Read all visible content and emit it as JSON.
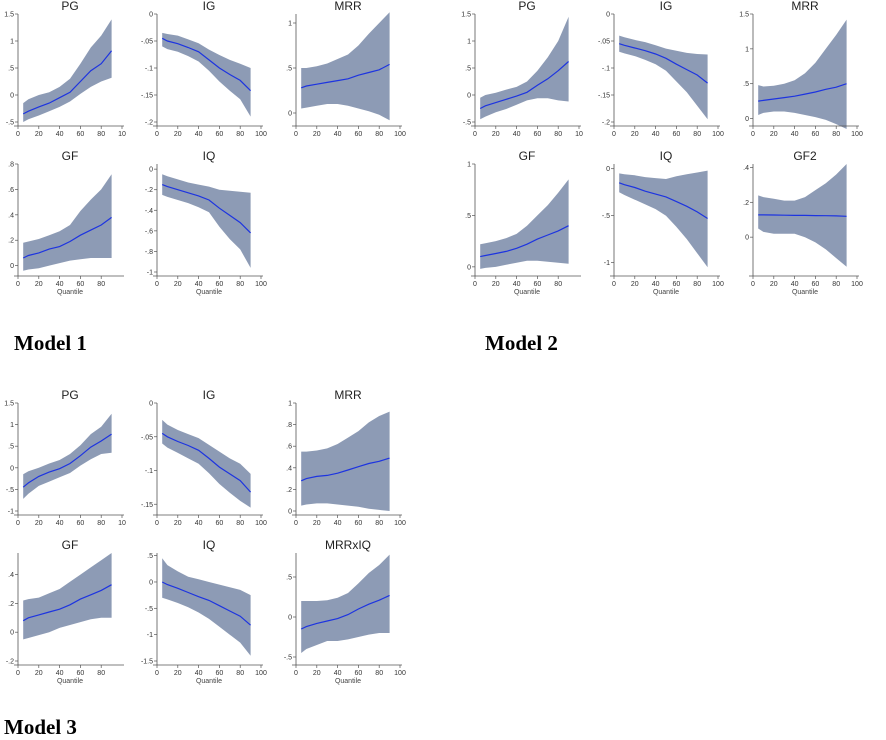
{
  "models": [
    {
      "label": "Model 1"
    },
    {
      "label": "Model 2"
    },
    {
      "label": "Model 3"
    }
  ],
  "colors": {
    "band": "#8d9bb5",
    "line": "#1d34e0",
    "axis": "#555555"
  },
  "chart_data": [
    {
      "type": "area",
      "model": "Model 1",
      "title": "PG",
      "xlabel": "",
      "ylim": [
        -0.5,
        1.5
      ],
      "yticks": [
        "-.5",
        "0",
        ".5",
        "1",
        "1.5"
      ],
      "xticks": [
        "0",
        "20",
        "40",
        "60",
        "80",
        "10"
      ],
      "x": [
        5,
        10,
        20,
        30,
        40,
        50,
        60,
        70,
        80,
        90
      ],
      "y": [
        -0.35,
        -0.3,
        -0.22,
        -0.15,
        -0.05,
        0.05,
        0.25,
        0.45,
        0.58,
        0.82
      ],
      "lower": [
        -0.5,
        -0.45,
        -0.38,
        -0.3,
        -0.22,
        -0.12,
        0.02,
        0.15,
        0.25,
        0.32
      ],
      "upper": [
        -0.15,
        -0.08,
        0.0,
        0.05,
        0.15,
        0.3,
        0.58,
        0.88,
        1.1,
        1.4
      ]
    },
    {
      "type": "area",
      "model": "Model 1",
      "title": "IG",
      "xlabel": "",
      "ylim": [
        -0.2,
        0
      ],
      "yticks": [
        "-.2",
        "-.15",
        "-.1",
        "-.05",
        "0"
      ],
      "xticks": [
        "0",
        "20",
        "40",
        "60",
        "80",
        "100"
      ],
      "x": [
        5,
        10,
        20,
        30,
        40,
        50,
        60,
        70,
        80,
        90
      ],
      "y": [
        -0.045,
        -0.05,
        -0.055,
        -0.062,
        -0.07,
        -0.085,
        -0.1,
        -0.112,
        -0.123,
        -0.142
      ],
      "lower": [
        -0.06,
        -0.065,
        -0.07,
        -0.078,
        -0.088,
        -0.105,
        -0.125,
        -0.142,
        -0.158,
        -0.19
      ],
      "upper": [
        -0.035,
        -0.037,
        -0.04,
        -0.047,
        -0.054,
        -0.066,
        -0.076,
        -0.085,
        -0.092,
        -0.1
      ]
    },
    {
      "type": "area",
      "model": "Model 1",
      "title": "MRR",
      "xlabel": "",
      "ylim": [
        -0.1,
        1.1
      ],
      "yticks": [
        "0",
        ".5",
        "1"
      ],
      "xticks": [
        "0",
        "20",
        "40",
        "60",
        "80",
        "100"
      ],
      "x": [
        5,
        10,
        20,
        30,
        40,
        50,
        60,
        70,
        80,
        90
      ],
      "y": [
        0.28,
        0.3,
        0.32,
        0.34,
        0.36,
        0.38,
        0.42,
        0.45,
        0.48,
        0.54
      ],
      "lower": [
        0.05,
        0.06,
        0.08,
        0.1,
        0.1,
        0.08,
        0.05,
        0.02,
        -0.02,
        -0.08
      ],
      "upper": [
        0.5,
        0.5,
        0.52,
        0.55,
        0.6,
        0.65,
        0.75,
        0.88,
        1.0,
        1.12
      ]
    },
    {
      "type": "area",
      "model": "Model 1",
      "title": "GF",
      "xlabel": "Quantile",
      "ylim": [
        -0.05,
        0.8
      ],
      "yticks": [
        "0",
        ".2",
        ".4",
        ".6",
        ".8"
      ],
      "xticks": [
        "0",
        "20",
        "40",
        "60",
        "80"
      ],
      "x": [
        5,
        10,
        20,
        30,
        40,
        50,
        60,
        70,
        80,
        90
      ],
      "y": [
        0.06,
        0.08,
        0.1,
        0.13,
        0.15,
        0.19,
        0.24,
        0.28,
        0.32,
        0.38
      ],
      "lower": [
        -0.04,
        -0.03,
        -0.02,
        0.0,
        0.02,
        0.04,
        0.05,
        0.06,
        0.06,
        0.06
      ],
      "upper": [
        0.18,
        0.19,
        0.21,
        0.24,
        0.27,
        0.32,
        0.43,
        0.52,
        0.6,
        0.72
      ]
    },
    {
      "type": "area",
      "model": "Model 1",
      "title": "IQ",
      "xlabel": "Quantile",
      "ylim": [
        -1,
        0.05
      ],
      "yticks": [
        "-1",
        "-.8",
        "-.6",
        "-.4",
        "-.2",
        "0"
      ],
      "xticks": [
        "0",
        "20",
        "40",
        "60",
        "80",
        "100"
      ],
      "x": [
        5,
        10,
        20,
        30,
        40,
        50,
        60,
        70,
        80,
        90
      ],
      "y": [
        -0.15,
        -0.17,
        -0.2,
        -0.23,
        -0.26,
        -0.3,
        -0.38,
        -0.45,
        -0.52,
        -0.62
      ],
      "lower": [
        -0.25,
        -0.27,
        -0.3,
        -0.33,
        -0.37,
        -0.42,
        -0.56,
        -0.68,
        -0.78,
        -0.96
      ],
      "upper": [
        -0.05,
        -0.07,
        -0.1,
        -0.13,
        -0.15,
        -0.17,
        -0.2,
        -0.21,
        -0.22,
        -0.23
      ]
    },
    {
      "type": "area",
      "model": "Model 2",
      "title": "PG",
      "xlabel": "",
      "ylim": [
        -0.5,
        1.5
      ],
      "yticks": [
        "-.5",
        "0",
        ".5",
        "1",
        "1.5"
      ],
      "xticks": [
        "0",
        "20",
        "40",
        "60",
        "80",
        "10"
      ],
      "x": [
        5,
        10,
        20,
        30,
        40,
        50,
        60,
        70,
        80,
        90
      ],
      "y": [
        -0.25,
        -0.2,
        -0.14,
        -0.08,
        -0.02,
        0.05,
        0.18,
        0.3,
        0.45,
        0.62
      ],
      "lower": [
        -0.45,
        -0.4,
        -0.32,
        -0.26,
        -0.18,
        -0.1,
        -0.06,
        -0.06,
        -0.1,
        -0.12
      ],
      "upper": [
        -0.05,
        0.0,
        0.04,
        0.1,
        0.15,
        0.25,
        0.45,
        0.7,
        1.0,
        1.45
      ]
    },
    {
      "type": "area",
      "model": "Model 2",
      "title": "IG",
      "xlabel": "",
      "ylim": [
        -0.2,
        0
      ],
      "yticks": [
        "-.2",
        "-.15",
        "-.1",
        "-.05",
        "0"
      ],
      "xticks": [
        "0",
        "20",
        "40",
        "60",
        "80",
        "100"
      ],
      "x": [
        5,
        10,
        20,
        30,
        40,
        50,
        60,
        70,
        80,
        90
      ],
      "y": [
        -0.055,
        -0.058,
        -0.063,
        -0.068,
        -0.074,
        -0.082,
        -0.093,
        -0.103,
        -0.113,
        -0.128
      ],
      "lower": [
        -0.07,
        -0.073,
        -0.078,
        -0.085,
        -0.093,
        -0.105,
        -0.125,
        -0.145,
        -0.17,
        -0.195
      ],
      "upper": [
        -0.04,
        -0.043,
        -0.048,
        -0.052,
        -0.058,
        -0.064,
        -0.068,
        -0.072,
        -0.074,
        -0.075
      ]
    },
    {
      "type": "area",
      "model": "Model 2",
      "title": "MRR",
      "xlabel": "",
      "ylim": [
        -0.05,
        1.5
      ],
      "yticks": [
        "0",
        ".5",
        "1",
        "1.5"
      ],
      "xticks": [
        "0",
        "20",
        "40",
        "60",
        "80",
        "100"
      ],
      "x": [
        5,
        10,
        20,
        30,
        40,
        50,
        60,
        70,
        80,
        90
      ],
      "y": [
        0.25,
        0.26,
        0.28,
        0.3,
        0.32,
        0.35,
        0.38,
        0.42,
        0.45,
        0.5
      ],
      "lower": [
        0.05,
        0.08,
        0.1,
        0.1,
        0.08,
        0.05,
        0.02,
        -0.02,
        -0.08,
        -0.15
      ],
      "upper": [
        0.48,
        0.46,
        0.47,
        0.5,
        0.55,
        0.65,
        0.8,
        1.0,
        1.2,
        1.42
      ]
    },
    {
      "type": "area",
      "model": "Model 2",
      "title": "GF",
      "xlabel": "Quantile",
      "ylim": [
        -0.05,
        1
      ],
      "yticks": [
        "0",
        ".5",
        "1"
      ],
      "xticks": [
        "0",
        "20",
        "40",
        "60",
        "80"
      ],
      "x": [
        5,
        10,
        20,
        30,
        40,
        50,
        60,
        70,
        80,
        90
      ],
      "y": [
        0.1,
        0.11,
        0.13,
        0.15,
        0.18,
        0.22,
        0.27,
        0.31,
        0.35,
        0.4
      ],
      "lower": [
        -0.02,
        -0.01,
        0.0,
        0.02,
        0.04,
        0.06,
        0.06,
        0.05,
        0.04,
        0.03
      ],
      "upper": [
        0.22,
        0.23,
        0.25,
        0.28,
        0.32,
        0.4,
        0.5,
        0.6,
        0.72,
        0.85
      ]
    },
    {
      "type": "area",
      "model": "Model 2",
      "title": "IQ",
      "xlabel": "Quantile",
      "ylim": [
        -1.1,
        0.05
      ],
      "yticks": [
        "-1",
        "-.5",
        "0"
      ],
      "xticks": [
        "0",
        "20",
        "40",
        "60",
        "80",
        "100"
      ],
      "x": [
        5,
        10,
        20,
        30,
        40,
        50,
        60,
        70,
        80,
        90
      ],
      "y": [
        -0.15,
        -0.17,
        -0.2,
        -0.24,
        -0.27,
        -0.3,
        -0.35,
        -0.4,
        -0.46,
        -0.53
      ],
      "lower": [
        -0.25,
        -0.28,
        -0.33,
        -0.38,
        -0.43,
        -0.5,
        -0.62,
        -0.75,
        -0.9,
        -1.05
      ],
      "upper": [
        -0.05,
        -0.06,
        -0.07,
        -0.09,
        -0.1,
        -0.11,
        -0.08,
        -0.06,
        -0.04,
        -0.02
      ]
    },
    {
      "type": "area",
      "model": "Model 2",
      "title": "GF2",
      "xlabel": "Quantile",
      "ylim": [
        -0.2,
        0.42
      ],
      "yticks": [
        "0",
        ".2",
        ".4"
      ],
      "xticks": [
        "0",
        "20",
        "40",
        "60",
        "80",
        "100"
      ],
      "x": [
        5,
        10,
        20,
        30,
        40,
        50,
        60,
        70,
        80,
        90
      ],
      "y": [
        0.128,
        0.128,
        0.127,
        0.126,
        0.125,
        0.125,
        0.124,
        0.123,
        0.122,
        0.12
      ],
      "lower": [
        0.05,
        0.03,
        0.02,
        0.02,
        0.02,
        0.0,
        -0.03,
        -0.07,
        -0.12,
        -0.17
      ],
      "upper": [
        0.24,
        0.23,
        0.22,
        0.21,
        0.21,
        0.23,
        0.27,
        0.31,
        0.36,
        0.42
      ]
    },
    {
      "type": "area",
      "model": "Model 3",
      "title": "PG",
      "xlabel": "",
      "ylim": [
        -1,
        1.5
      ],
      "yticks": [
        "-1",
        "-.5",
        "0",
        ".5",
        "1",
        "1.5"
      ],
      "xticks": [
        "0",
        "20",
        "40",
        "60",
        "80",
        "10"
      ],
      "x": [
        5,
        10,
        20,
        30,
        40,
        50,
        60,
        70,
        80,
        90
      ],
      "y": [
        -0.45,
        -0.35,
        -0.2,
        -0.1,
        -0.02,
        0.1,
        0.28,
        0.48,
        0.62,
        0.78
      ],
      "lower": [
        -0.72,
        -0.6,
        -0.42,
        -0.32,
        -0.22,
        -0.12,
        0.05,
        0.2,
        0.32,
        0.35
      ],
      "upper": [
        -0.15,
        -0.08,
        0.0,
        0.1,
        0.18,
        0.32,
        0.52,
        0.78,
        0.95,
        1.25
      ]
    },
    {
      "type": "area",
      "model": "Model 3",
      "title": "IG",
      "xlabel": "",
      "ylim": [
        -0.16,
        0
      ],
      "yticks": [
        "-.15",
        "-.1",
        "-.05",
        "0"
      ],
      "xticks": [
        "0",
        "20",
        "40",
        "60",
        "80",
        "100"
      ],
      "x": [
        5,
        10,
        20,
        30,
        40,
        50,
        60,
        70,
        80,
        90
      ],
      "y": [
        -0.045,
        -0.05,
        -0.057,
        -0.063,
        -0.07,
        -0.082,
        -0.095,
        -0.105,
        -0.115,
        -0.132
      ],
      "lower": [
        -0.06,
        -0.066,
        -0.074,
        -0.082,
        -0.09,
        -0.104,
        -0.12,
        -0.133,
        -0.145,
        -0.155
      ],
      "upper": [
        -0.025,
        -0.032,
        -0.04,
        -0.046,
        -0.052,
        -0.062,
        -0.072,
        -0.082,
        -0.09,
        -0.105
      ]
    },
    {
      "type": "area",
      "model": "Model 3",
      "title": "MRR",
      "xlabel": "",
      "ylim": [
        0,
        1
      ],
      "yticks": [
        "0",
        ".2",
        ".4",
        ".6",
        ".8",
        "1"
      ],
      "xticks": [
        "0",
        "20",
        "40",
        "60",
        "80",
        "100"
      ],
      "x": [
        5,
        10,
        20,
        30,
        40,
        50,
        60,
        70,
        80,
        90
      ],
      "y": [
        0.28,
        0.3,
        0.32,
        0.33,
        0.35,
        0.38,
        0.41,
        0.44,
        0.46,
        0.49
      ],
      "lower": [
        0.05,
        0.06,
        0.07,
        0.07,
        0.06,
        0.05,
        0.04,
        0.02,
        0.01,
        0.0
      ],
      "upper": [
        0.55,
        0.55,
        0.56,
        0.58,
        0.62,
        0.68,
        0.74,
        0.82,
        0.88,
        0.92
      ]
    },
    {
      "type": "area",
      "model": "Model 3",
      "title": "GF",
      "xlabel": "Quantile",
      "ylim": [
        -0.2,
        0.55
      ],
      "yticks": [
        "-.2",
        "0",
        ".2",
        ".4"
      ],
      "xticks": [
        "0",
        "20",
        "40",
        "60",
        "80"
      ],
      "x": [
        5,
        10,
        20,
        30,
        40,
        50,
        60,
        70,
        80,
        90
      ],
      "y": [
        0.08,
        0.1,
        0.12,
        0.14,
        0.16,
        0.19,
        0.23,
        0.26,
        0.29,
        0.33
      ],
      "lower": [
        -0.05,
        -0.04,
        -0.02,
        0.0,
        0.03,
        0.05,
        0.07,
        0.09,
        0.1,
        0.1
      ],
      "upper": [
        0.22,
        0.23,
        0.24,
        0.27,
        0.3,
        0.35,
        0.4,
        0.45,
        0.5,
        0.55
      ]
    },
    {
      "type": "area",
      "model": "Model 3",
      "title": "IQ",
      "xlabel": "Quantile",
      "ylim": [
        -1.5,
        0.55
      ],
      "yticks": [
        "-1.5",
        "-1",
        "-.5",
        "0",
        ".5"
      ],
      "xticks": [
        "0",
        "20",
        "40",
        "60",
        "80",
        "100"
      ],
      "x": [
        5,
        10,
        20,
        30,
        40,
        50,
        60,
        70,
        80,
        90
      ],
      "y": [
        0.0,
        -0.05,
        -0.12,
        -0.2,
        -0.28,
        -0.35,
        -0.45,
        -0.55,
        -0.65,
        -0.82
      ],
      "lower": [
        -0.3,
        -0.33,
        -0.4,
        -0.48,
        -0.58,
        -0.7,
        -0.85,
        -1.0,
        -1.15,
        -1.4
      ],
      "upper": [
        0.45,
        0.32,
        0.2,
        0.1,
        0.05,
        0.0,
        -0.05,
        -0.1,
        -0.15,
        -0.25
      ]
    },
    {
      "type": "area",
      "model": "Model 3",
      "title": "MRRxIQ",
      "xlabel": "Quantile",
      "ylim": [
        -0.55,
        0.8
      ],
      "yticks": [
        "-.5",
        "0",
        ".5"
      ],
      "xticks": [
        "0",
        "20",
        "40",
        "60",
        "80",
        "100"
      ],
      "x": [
        5,
        10,
        20,
        30,
        40,
        50,
        60,
        70,
        80,
        90
      ],
      "y": [
        -0.15,
        -0.12,
        -0.08,
        -0.05,
        -0.02,
        0.03,
        0.1,
        0.16,
        0.21,
        0.27
      ],
      "lower": [
        -0.45,
        -0.4,
        -0.35,
        -0.3,
        -0.3,
        -0.28,
        -0.25,
        -0.22,
        -0.2,
        -0.2
      ],
      "upper": [
        0.2,
        0.2,
        0.2,
        0.21,
        0.24,
        0.3,
        0.42,
        0.55,
        0.65,
        0.78
      ]
    }
  ]
}
